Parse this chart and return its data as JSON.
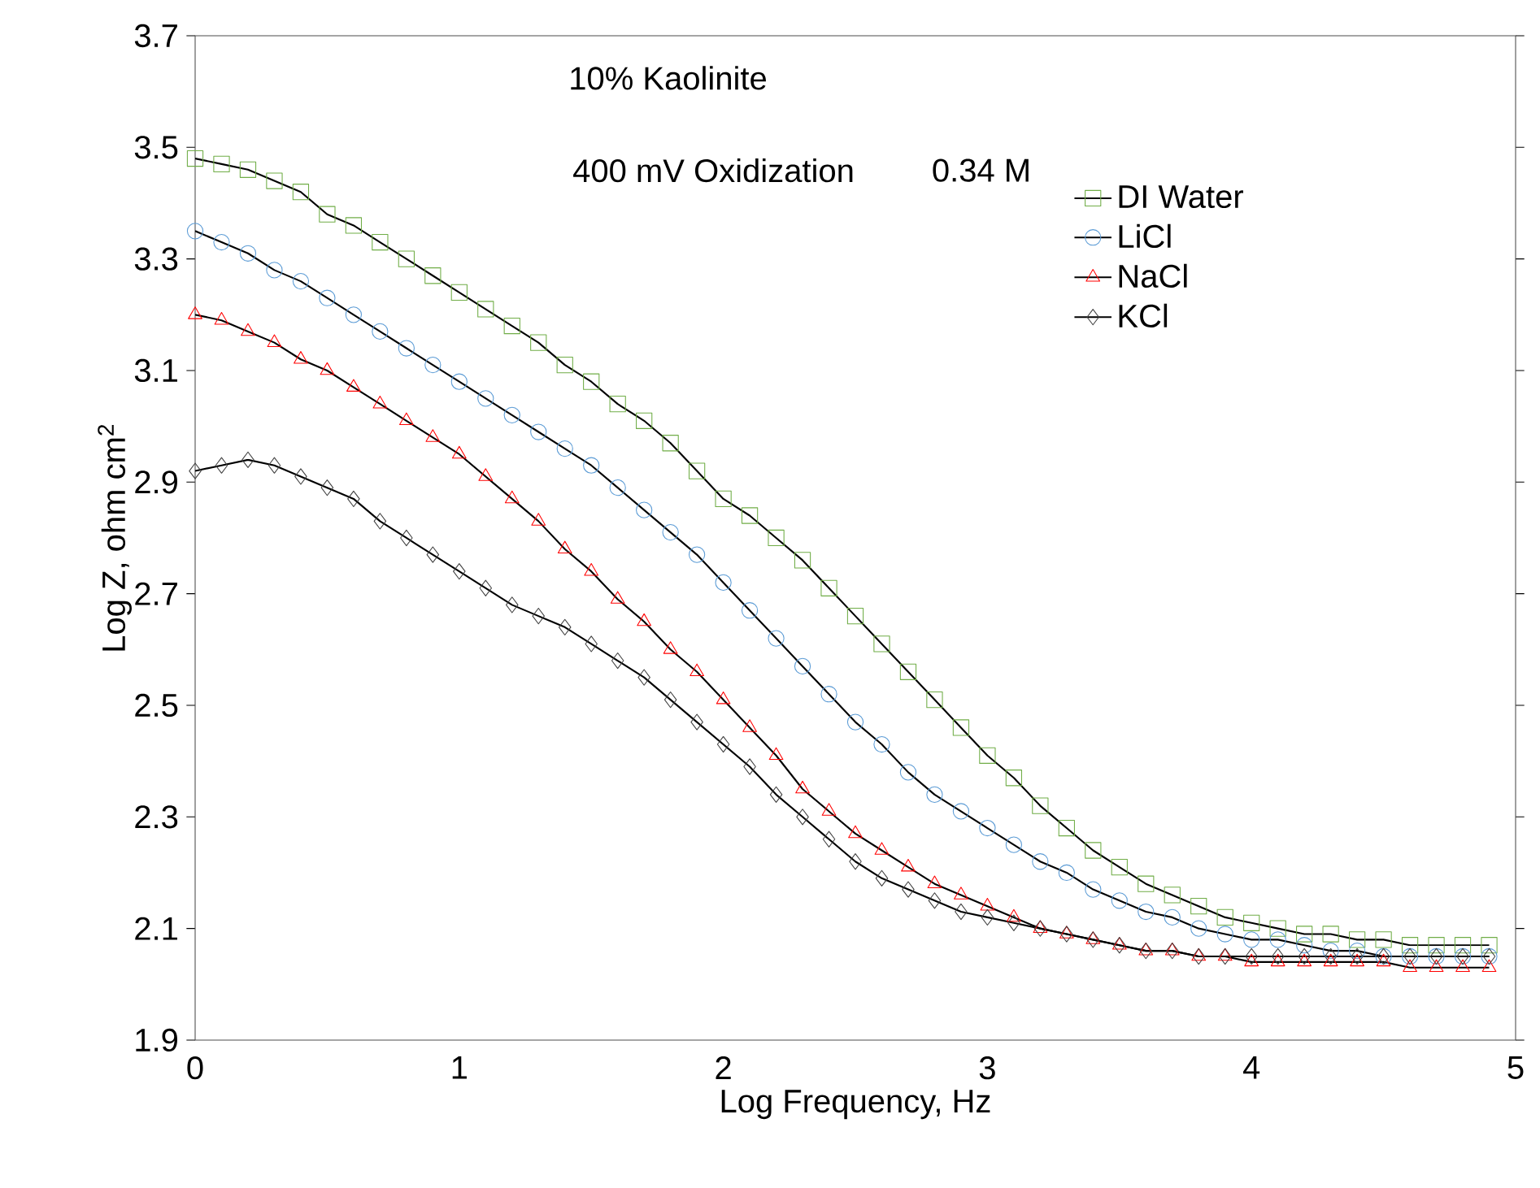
{
  "chart_data": {
    "type": "line",
    "xlabel": "Log Frequency, Hz",
    "ylabel": "Log Z, ohm cm$^{2}$",
    "annotations": [
      "10% Kaolinite",
      "400 mV Oxidization",
      "0.34 M"
    ],
    "x": [
      0,
      0.1,
      0.2,
      0.3,
      0.4,
      0.5,
      0.6,
      0.7,
      0.8,
      0.9,
      1.0,
      1.1,
      1.2,
      1.3,
      1.4,
      1.5,
      1.6,
      1.7,
      1.8,
      1.9,
      2.0,
      2.1,
      2.2,
      2.3,
      2.4,
      2.5,
      2.6,
      2.7,
      2.8,
      2.9,
      3.0,
      3.1,
      3.2,
      3.3,
      3.4,
      3.5,
      3.6,
      3.7,
      3.8,
      3.9,
      4.0,
      4.1,
      4.2,
      4.3,
      4.4,
      4.5,
      4.6,
      4.7,
      4.8,
      4.9
    ],
    "series": [
      {
        "name": "DI Water",
        "color": "#70ad47",
        "marker": "square",
        "values": [
          3.48,
          3.47,
          3.46,
          3.44,
          3.42,
          3.38,
          3.36,
          3.33,
          3.3,
          3.27,
          3.24,
          3.21,
          3.18,
          3.15,
          3.11,
          3.08,
          3.04,
          3.01,
          2.97,
          2.92,
          2.87,
          2.84,
          2.8,
          2.76,
          2.71,
          2.66,
          2.61,
          2.56,
          2.51,
          2.46,
          2.41,
          2.37,
          2.32,
          2.28,
          2.24,
          2.21,
          2.18,
          2.16,
          2.14,
          2.12,
          2.11,
          2.1,
          2.09,
          2.09,
          2.08,
          2.08,
          2.07,
          2.07,
          2.07,
          2.07
        ]
      },
      {
        "name": "LiCl",
        "color": "#5b9bd5",
        "marker": "circle",
        "values": [
          3.35,
          3.33,
          3.31,
          3.28,
          3.26,
          3.23,
          3.2,
          3.17,
          3.14,
          3.11,
          3.08,
          3.05,
          3.02,
          2.99,
          2.96,
          2.93,
          2.89,
          2.85,
          2.81,
          2.77,
          2.72,
          2.67,
          2.62,
          2.57,
          2.52,
          2.47,
          2.43,
          2.38,
          2.34,
          2.31,
          2.28,
          2.25,
          2.22,
          2.2,
          2.17,
          2.15,
          2.13,
          2.12,
          2.1,
          2.09,
          2.08,
          2.08,
          2.07,
          2.06,
          2.06,
          2.05,
          2.05,
          2.05,
          2.05,
          2.05
        ]
      },
      {
        "name": "NaCl",
        "color": "#ff0000",
        "marker": "triangle",
        "values": [
          3.2,
          3.19,
          3.17,
          3.15,
          3.12,
          3.1,
          3.07,
          3.04,
          3.01,
          2.98,
          2.95,
          2.91,
          2.87,
          2.83,
          2.78,
          2.74,
          2.69,
          2.65,
          2.6,
          2.56,
          2.51,
          2.46,
          2.41,
          2.35,
          2.31,
          2.27,
          2.24,
          2.21,
          2.18,
          2.16,
          2.14,
          2.12,
          2.1,
          2.09,
          2.08,
          2.07,
          2.06,
          2.06,
          2.05,
          2.05,
          2.04,
          2.04,
          2.04,
          2.04,
          2.04,
          2.04,
          2.03,
          2.03,
          2.03,
          2.03
        ]
      },
      {
        "name": "KCl",
        "color": "#404040",
        "marker": "diamond",
        "values": [
          2.92,
          2.93,
          2.94,
          2.93,
          2.91,
          2.89,
          2.87,
          2.83,
          2.8,
          2.77,
          2.74,
          2.71,
          2.68,
          2.66,
          2.64,
          2.61,
          2.58,
          2.55,
          2.51,
          2.47,
          2.43,
          2.39,
          2.34,
          2.3,
          2.26,
          2.22,
          2.19,
          2.17,
          2.15,
          2.13,
          2.12,
          2.11,
          2.1,
          2.09,
          2.08,
          2.07,
          2.06,
          2.06,
          2.05,
          2.05,
          2.05,
          2.05,
          2.05,
          2.05,
          2.05,
          2.05,
          2.05,
          2.05,
          2.05,
          2.05
        ]
      }
    ],
    "xlim": [
      0,
      5
    ],
    "xticks": [
      0,
      1,
      2,
      3,
      4,
      5
    ],
    "ylim": [
      1.9,
      3.7
    ],
    "yticks": [
      1.9,
      2.1,
      2.3,
      2.5,
      2.7,
      2.9,
      3.1,
      3.3,
      3.5,
      3.7
    ],
    "grid": false,
    "legend": "top right",
    "line_style": "solid"
  }
}
